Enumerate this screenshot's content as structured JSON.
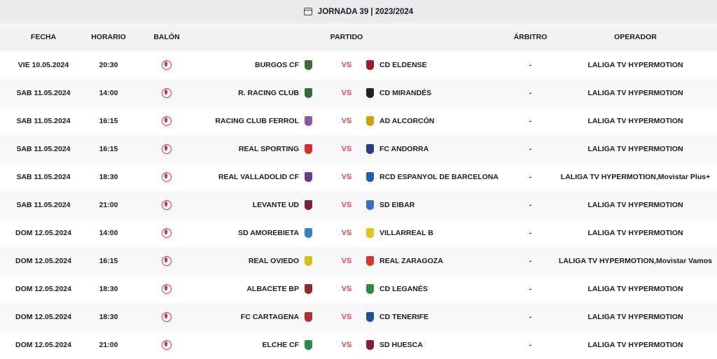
{
  "title": "JORNADA 39 | 2023/2024",
  "title_icon": "calendar-icon",
  "columns": {
    "fecha": "FECHA",
    "horario": "HORARIO",
    "balon": "BALÓN",
    "partido": "PARTIDO",
    "arbitro": "ÁRBITRO",
    "operador": "OPERADOR"
  },
  "vs_color": "#e8484d",
  "matches": [
    {
      "fecha": "VIE 10.05.2024",
      "hora": "20:30",
      "home": "BURGOS CF",
      "away": "CD ELDENSE",
      "vs": "VS",
      "arbitro": "-",
      "operador": "LALIGA TV HYPERMOTION",
      "hc": "#3f6b3a",
      "ac": "#9e1b2c"
    },
    {
      "fecha": "SAB 11.05.2024",
      "hora": "14:00",
      "home": "R. RACING CLUB",
      "away": "CD MIRANDÉS",
      "vs": "VS",
      "arbitro": "-",
      "operador": "LALIGA TV HYPERMOTION",
      "hc": "#2e6b3f",
      "ac": "#222"
    },
    {
      "fecha": "SAB 11.05.2024",
      "hora": "16:15",
      "home": "RACING CLUB FERROL",
      "away": "AD ALCORCÓN",
      "vs": "VS",
      "arbitro": "-",
      "operador": "LALIGA TV HYPERMOTION",
      "hc": "#8a5aa0",
      "ac": "#c9a400"
    },
    {
      "fecha": "SAB 11.05.2024",
      "hora": "16:15",
      "home": "REAL SPORTING",
      "away": "FC ANDORRA",
      "vs": "VS",
      "arbitro": "-",
      "operador": "LALIGA TV HYPERMOTION",
      "hc": "#d8302f",
      "ac": "#2b3a8a"
    },
    {
      "fecha": "SAB 11.05.2024",
      "hora": "18:30",
      "home": "REAL VALLADOLID CF",
      "away": "RCD ESPANYOL DE BARCELONA",
      "vs": "VS",
      "arbitro": "-",
      "operador": "LALIGA TV HYPERMOTION,Movistar Plus+",
      "hc": "#6b3a8e",
      "ac": "#1f5fb0"
    },
    {
      "fecha": "SAB 11.05.2024",
      "hora": "21:00",
      "home": "LEVANTE UD",
      "away": "SD EIBAR",
      "vs": "VS",
      "arbitro": "-",
      "operador": "LALIGA TV HYPERMOTION",
      "hc": "#7a1f3d",
      "ac": "#3b6fc0"
    },
    {
      "fecha": "DOM 12.05.2024",
      "hora": "14:00",
      "home": "SD AMOREBIETA",
      "away": "VILLARREAL B",
      "vs": "VS",
      "arbitro": "-",
      "operador": "LALIGA TV HYPERMOTION",
      "hc": "#3a7fc0",
      "ac": "#e4c21a"
    },
    {
      "fecha": "DOM 12.05.2024",
      "hora": "16:15",
      "home": "REAL OVIEDO",
      "away": "REAL ZARAGOZA",
      "vs": "VS",
      "arbitro": "-",
      "operador": "LALIGA TV HYPERMOTION,Movistar Vamos",
      "hc": "#d4c21a",
      "ac": "#d33a2a"
    },
    {
      "fecha": "DOM 12.05.2024",
      "hora": "18:30",
      "home": "ALBACETE BP",
      "away": "CD LEGANÉS",
      "vs": "VS",
      "arbitro": "-",
      "operador": "LALIGA TV HYPERMOTION",
      "hc": "#8a2a2a",
      "ac": "#2f8a4a"
    },
    {
      "fecha": "DOM 12.05.2024",
      "hora": "18:30",
      "home": "FC CARTAGENA",
      "away": "CD TENERIFE",
      "vs": "VS",
      "arbitro": "-",
      "operador": "LALIGA TV HYPERMOTION",
      "hc": "#b23030",
      "ac": "#1f4f9a"
    },
    {
      "fecha": "DOM 12.05.2024",
      "hora": "21:00",
      "home": "ELCHE CF",
      "away": "SD HUESCA",
      "vs": "VS",
      "arbitro": "-",
      "operador": "LALIGA TV HYPERMOTION",
      "hc": "#2f8a4a",
      "ac": "#8a1f3a"
    }
  ]
}
